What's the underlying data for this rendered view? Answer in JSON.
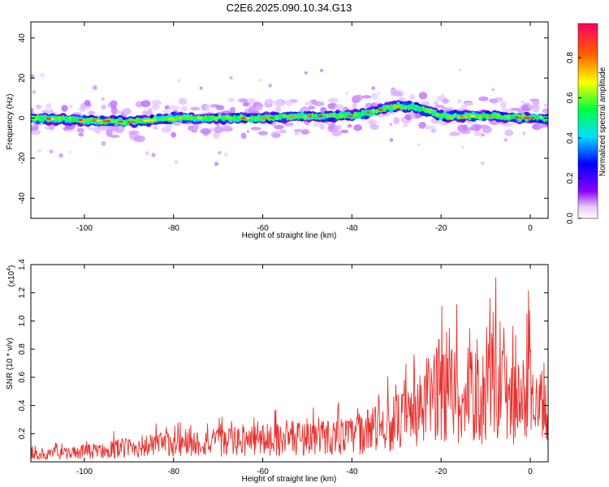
{
  "chart_data": [
    {
      "type": "heatmap",
      "title": "C2E6.2025.090.10.34.G13",
      "xlabel": "Height of straight line (km)",
      "ylabel": "Frequency (Hz)",
      "xlim": [
        -112,
        4
      ],
      "ylim": [
        -50,
        48
      ],
      "xticks": [
        -100,
        -80,
        -60,
        -40,
        -20,
        0
      ],
      "yticks": [
        -40,
        -20,
        0,
        20,
        40
      ],
      "colorbar": {
        "label": "Normalized spectral amplitude",
        "range": [
          0,
          0.97
        ],
        "ticks": [
          "0.0",
          "0.2",
          "0.4",
          "0.6",
          "0.8"
        ]
      },
      "ridge": {
        "x": [
          -112,
          -100,
          -90,
          -80,
          -70,
          -60,
          -50,
          -40,
          -30,
          -25,
          -20,
          -10,
          0,
          4
        ],
        "frequency": [
          0,
          -1,
          -2,
          0,
          0,
          0,
          1,
          1,
          6,
          5,
          1,
          1,
          0,
          0
        ]
      }
    },
    {
      "type": "line",
      "xlabel": "Height of straight line (km)",
      "ylabel": "SNR (10 * v/v)",
      "y_multiplier": "(x10",
      "y_multiplier_exp": "4",
      "xlim": [
        -112,
        4
      ],
      "ylim": [
        0,
        1.4
      ],
      "xticks": [
        -100,
        -80,
        -60,
        -40,
        -20,
        0
      ],
      "yticks": [
        "0.2",
        "0.4",
        "0.6",
        "0.8",
        "1.0",
        "1.2",
        "1.4"
      ],
      "series": [
        {
          "color": "#e8322e",
          "envelope": {
            "x": [
              -112,
              -100,
              -90,
              -80,
              -70,
              -60,
              -50,
              -40,
              -35,
              -30,
              -25,
              -22,
              -20,
              -15,
              -10,
              -8,
              -5,
              -2,
              0,
              2,
              4
            ],
            "y": [
              0.08,
              0.12,
              0.18,
              0.22,
              0.24,
              0.27,
              0.3,
              0.32,
              0.4,
              0.48,
              0.6,
              0.85,
              0.9,
              0.8,
              0.78,
              1.0,
              0.75,
              0.7,
              0.95,
              0.6,
              0.8
            ]
          }
        }
      ]
    }
  ]
}
